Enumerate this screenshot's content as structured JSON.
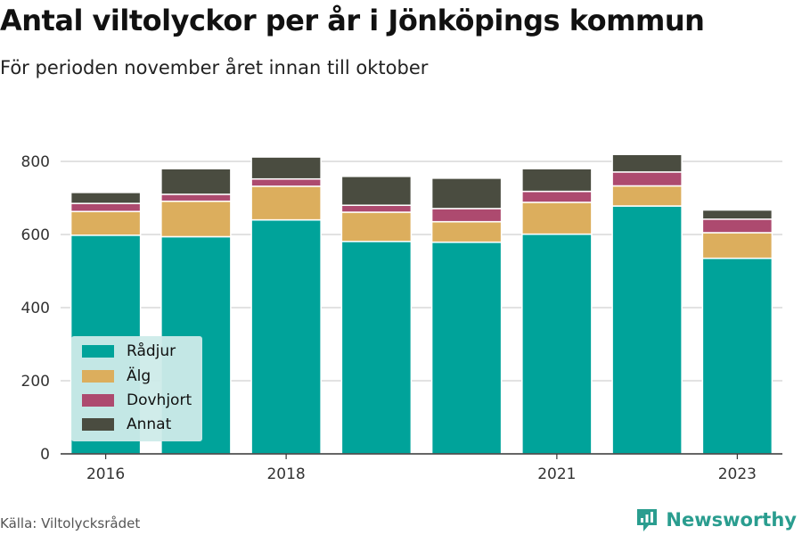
{
  "title": "Antal viltolyckor per år i Jönköpings kommun",
  "subtitle": "För perioden november året innan till oktober",
  "source": "Källa: Viltolycksrådet",
  "brand": "Newsworthy",
  "colors": {
    "Rådjur": "#00a39a",
    "Älg": "#dcae5d",
    "Dovhjort": "#ad4a6f",
    "Annat": "#4a4c40",
    "brand": "#2a9d8f"
  },
  "chart_data": {
    "type": "bar",
    "stacked": true,
    "categories": [
      "2016",
      "2017",
      "2018",
      "2019",
      "2020",
      "2021",
      "2022",
      "2023"
    ],
    "x_tick_labels": [
      "2016",
      "",
      "2018",
      "",
      "",
      "2021",
      "",
      "2023"
    ],
    "series": [
      {
        "name": "Rådjur",
        "values": [
          598,
          594,
          640,
          581,
          579,
          601,
          678,
          535
        ]
      },
      {
        "name": "Älg",
        "values": [
          65,
          97,
          92,
          80,
          56,
          87,
          55,
          70
        ]
      },
      {
        "name": "Dovhjort",
        "values": [
          22,
          19,
          20,
          19,
          36,
          30,
          38,
          37
        ]
      },
      {
        "name": "Annat",
        "values": [
          30,
          70,
          60,
          79,
          83,
          62,
          48,
          25
        ]
      }
    ],
    "ylim": [
      0,
      860
    ],
    "y_ticks": [
      0,
      200,
      400,
      600,
      800
    ],
    "grid": true,
    "legend_position": "bottom-left"
  }
}
